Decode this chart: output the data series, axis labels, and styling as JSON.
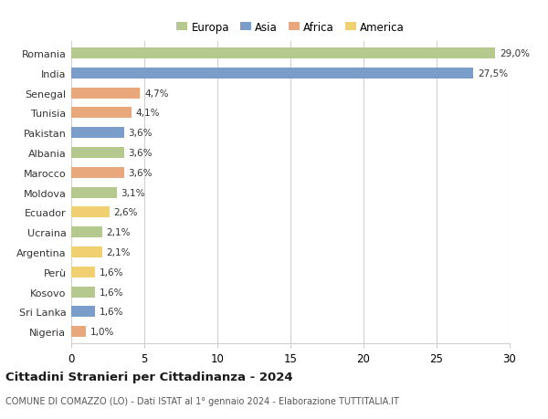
{
  "countries": [
    "Romania",
    "India",
    "Senegal",
    "Tunisia",
    "Pakistan",
    "Albania",
    "Marocco",
    "Moldova",
    "Ecuador",
    "Ucraina",
    "Argentina",
    "Perù",
    "Kosovo",
    "Sri Lanka",
    "Nigeria"
  ],
  "values": [
    29.0,
    27.5,
    4.7,
    4.1,
    3.6,
    3.6,
    3.6,
    3.1,
    2.6,
    2.1,
    2.1,
    1.6,
    1.6,
    1.6,
    1.0
  ],
  "labels": [
    "29,0%",
    "27,5%",
    "4,7%",
    "4,1%",
    "3,6%",
    "3,6%",
    "3,6%",
    "3,1%",
    "2,6%",
    "2,1%",
    "2,1%",
    "1,6%",
    "1,6%",
    "1,6%",
    "1,0%"
  ],
  "continents": [
    "Europa",
    "Asia",
    "Africa",
    "Africa",
    "Asia",
    "Europa",
    "Africa",
    "Europa",
    "America",
    "Europa",
    "America",
    "America",
    "Europa",
    "Asia",
    "Africa"
  ],
  "continent_colors": {
    "Europa": "#b5c98e",
    "Asia": "#7b9dc9",
    "Africa": "#e8a87c",
    "America": "#f0d070"
  },
  "legend_order": [
    "Europa",
    "Asia",
    "Africa",
    "America"
  ],
  "title": "Cittadini Stranieri per Cittadinanza - 2024",
  "subtitle": "COMUNE DI COMAZZO (LO) - Dati ISTAT al 1° gennaio 2024 - Elaborazione TUTTITALIA.IT",
  "xlim": [
    0,
    30
  ],
  "xticks": [
    0,
    5,
    10,
    15,
    20,
    25,
    30
  ],
  "background_color": "#ffffff",
  "grid_color": "#d0d0d0",
  "bar_height": 0.55
}
